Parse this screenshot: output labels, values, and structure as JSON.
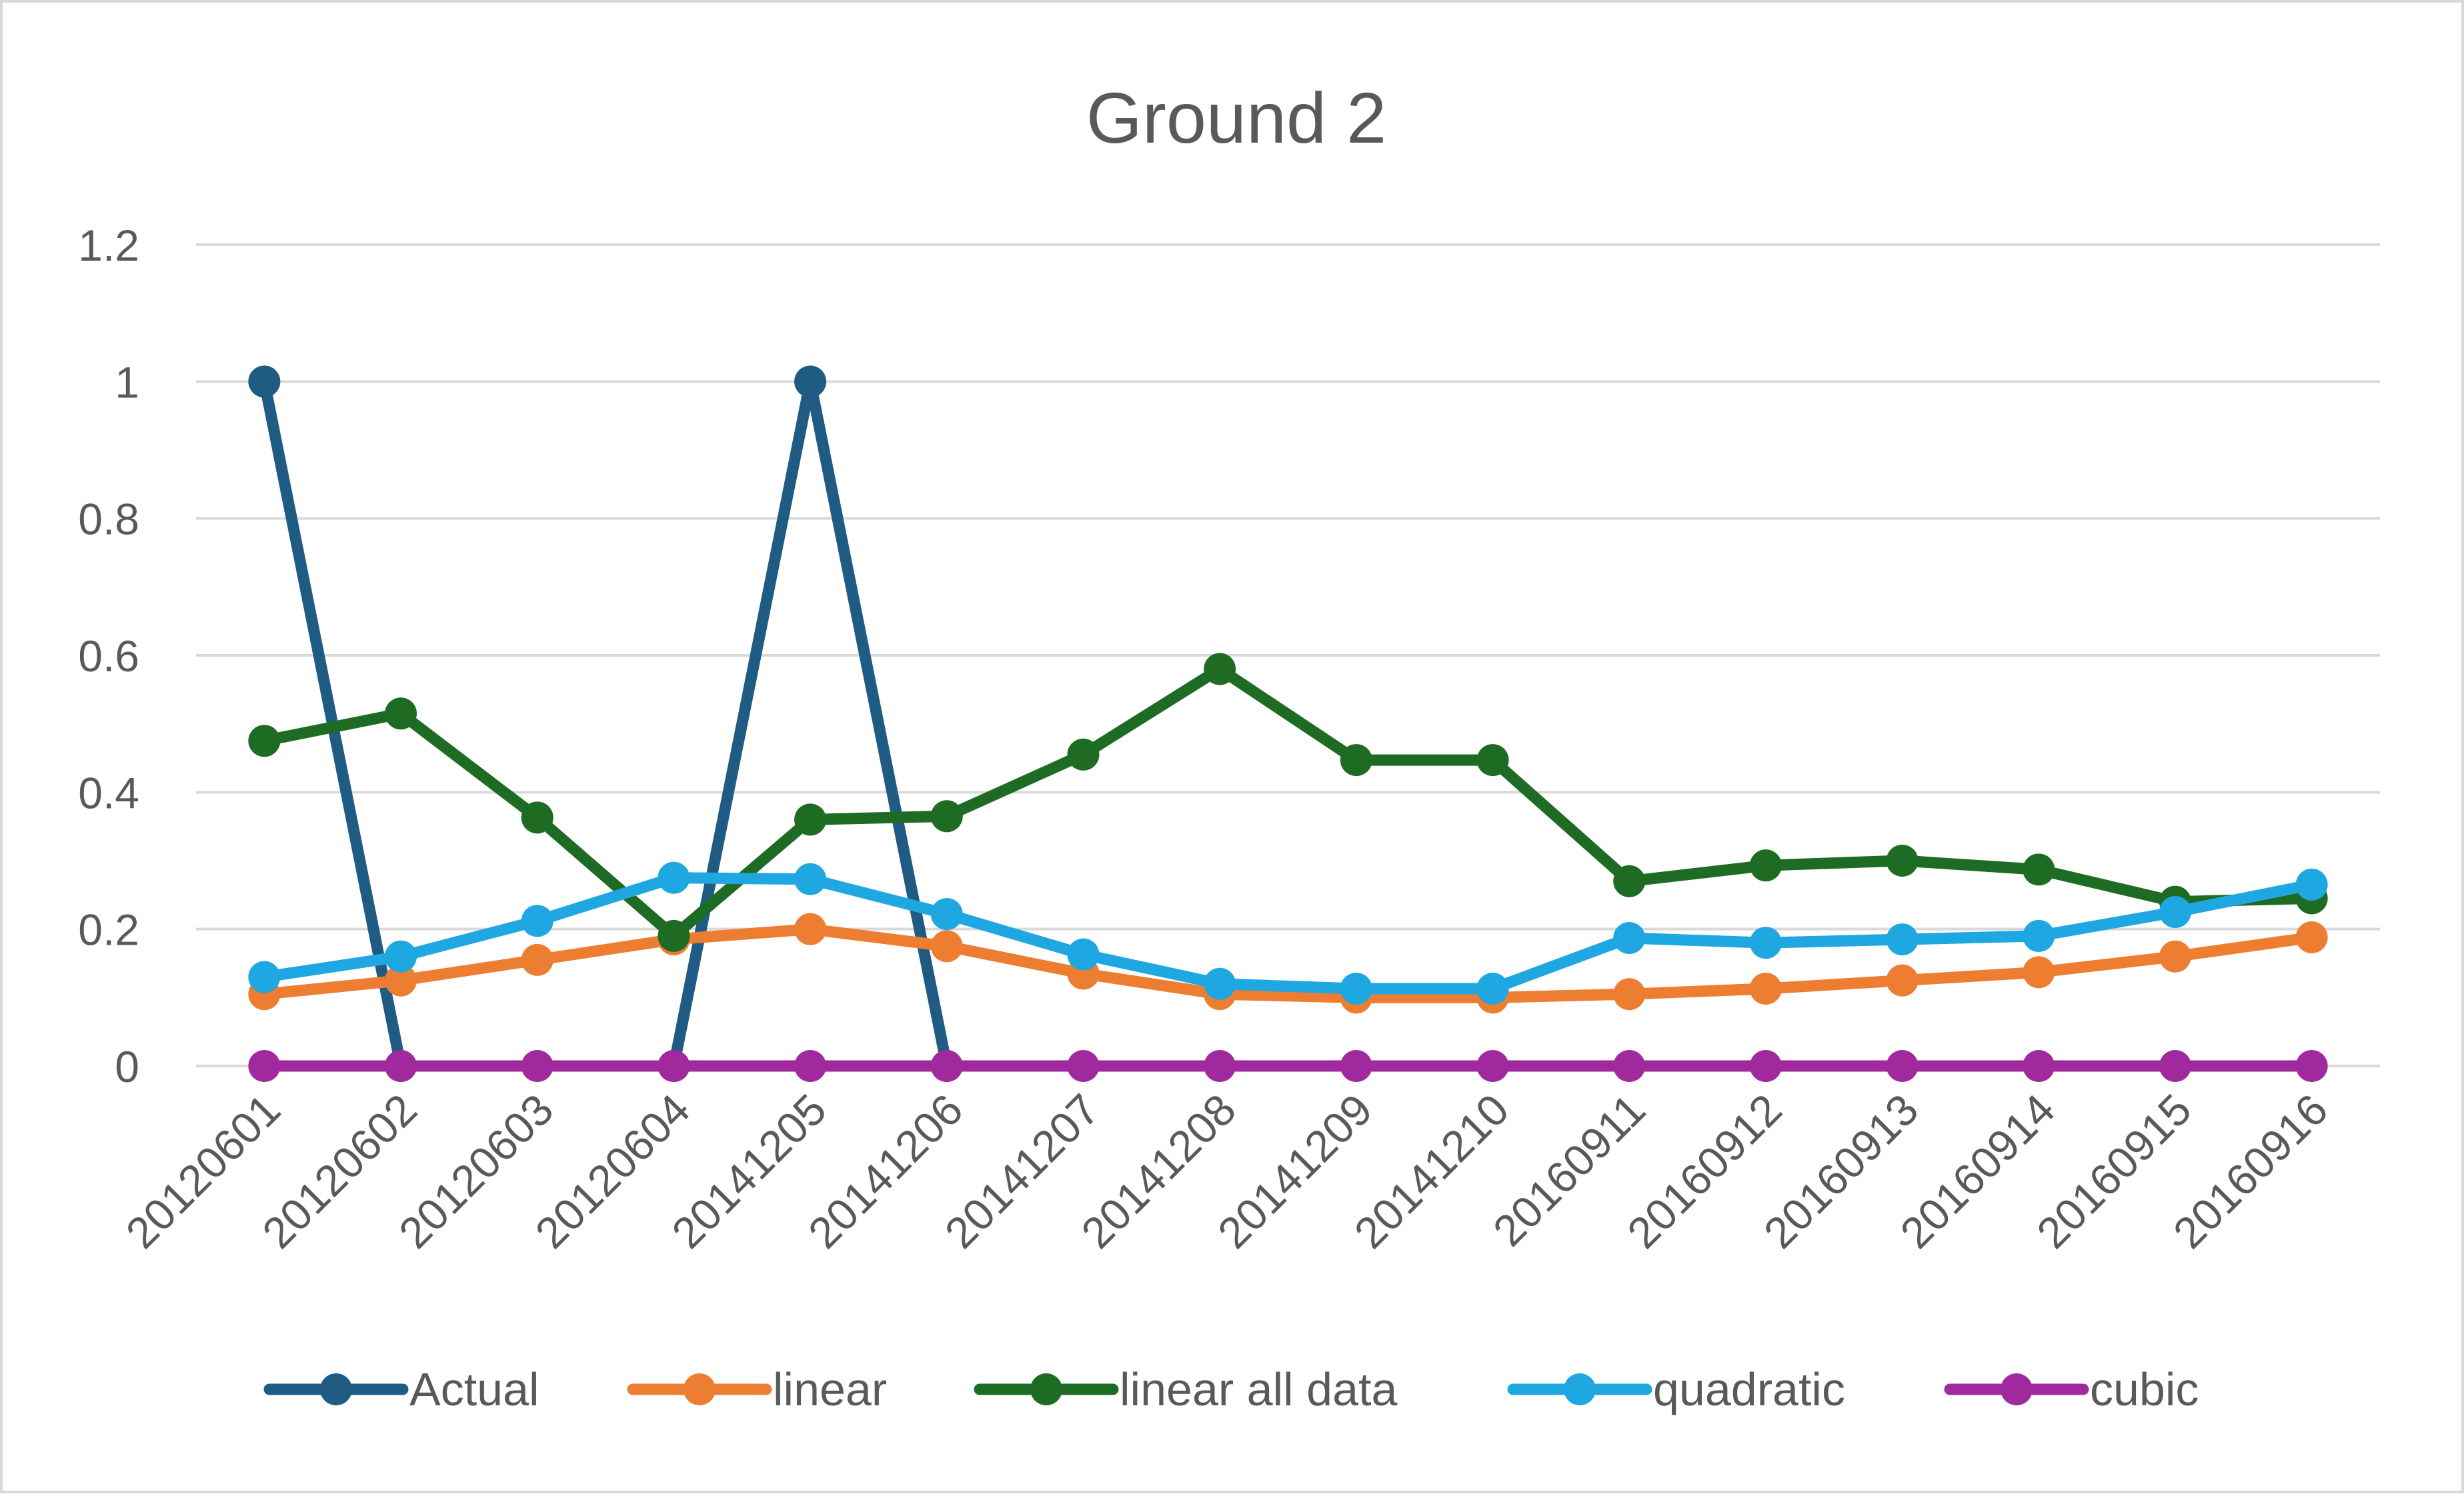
{
  "chart_data": {
    "type": "line",
    "title": "Ground 2",
    "xlabel": "",
    "ylabel": "",
    "ylim": [
      0,
      1.2
    ],
    "yticks": [
      "0",
      "0.2",
      "0.4",
      "0.6",
      "0.8",
      "1",
      "1.2"
    ],
    "ytick_values": [
      0,
      0.2,
      0.4,
      0.6,
      0.8,
      1.0,
      1.2
    ],
    "grid": true,
    "legend_position": "bottom",
    "categories": [
      "20120601",
      "20120602",
      "20120603",
      "20120604",
      "20141205",
      "20141206",
      "20141207",
      "20141208",
      "20141209",
      "20141210",
      "20160911",
      "20160912",
      "20160913",
      "20160914",
      "20160915",
      "20160916"
    ],
    "series": [
      {
        "name": "Actual",
        "color": "#1f5b82",
        "values": [
          1,
          0,
          null,
          0,
          1,
          0,
          null,
          null,
          null,
          null,
          null,
          null,
          null,
          null,
          null,
          null
        ]
      },
      {
        "name": "linear",
        "color": "#ed7d31",
        "values": [
          0.105,
          0.125,
          0.155,
          0.185,
          0.2,
          0.175,
          0.135,
          0.105,
          0.1,
          0.1,
          0.105,
          0.113,
          0.125,
          0.137,
          0.16,
          0.188
        ]
      },
      {
        "name": "linear all data",
        "color": "#1e6b23",
        "values": [
          0.475,
          0.515,
          0.363,
          0.19,
          0.36,
          0.365,
          0.455,
          0.58,
          0.447,
          0.447,
          0.27,
          0.293,
          0.3,
          0.287,
          0.24,
          0.245
        ]
      },
      {
        "name": "quadratic",
        "color": "#1ea7e1",
        "values": [
          0.13,
          0.16,
          0.212,
          0.275,
          0.273,
          0.222,
          0.163,
          0.12,
          0.113,
          0.113,
          0.187,
          0.18,
          0.185,
          0.19,
          0.225,
          0.265
        ]
      },
      {
        "name": "cubic",
        "color": "#a02a9d",
        "values": [
          0,
          0,
          0,
          0,
          0,
          0,
          0,
          0,
          0,
          0,
          0,
          0,
          0,
          0,
          0,
          0
        ]
      }
    ]
  }
}
